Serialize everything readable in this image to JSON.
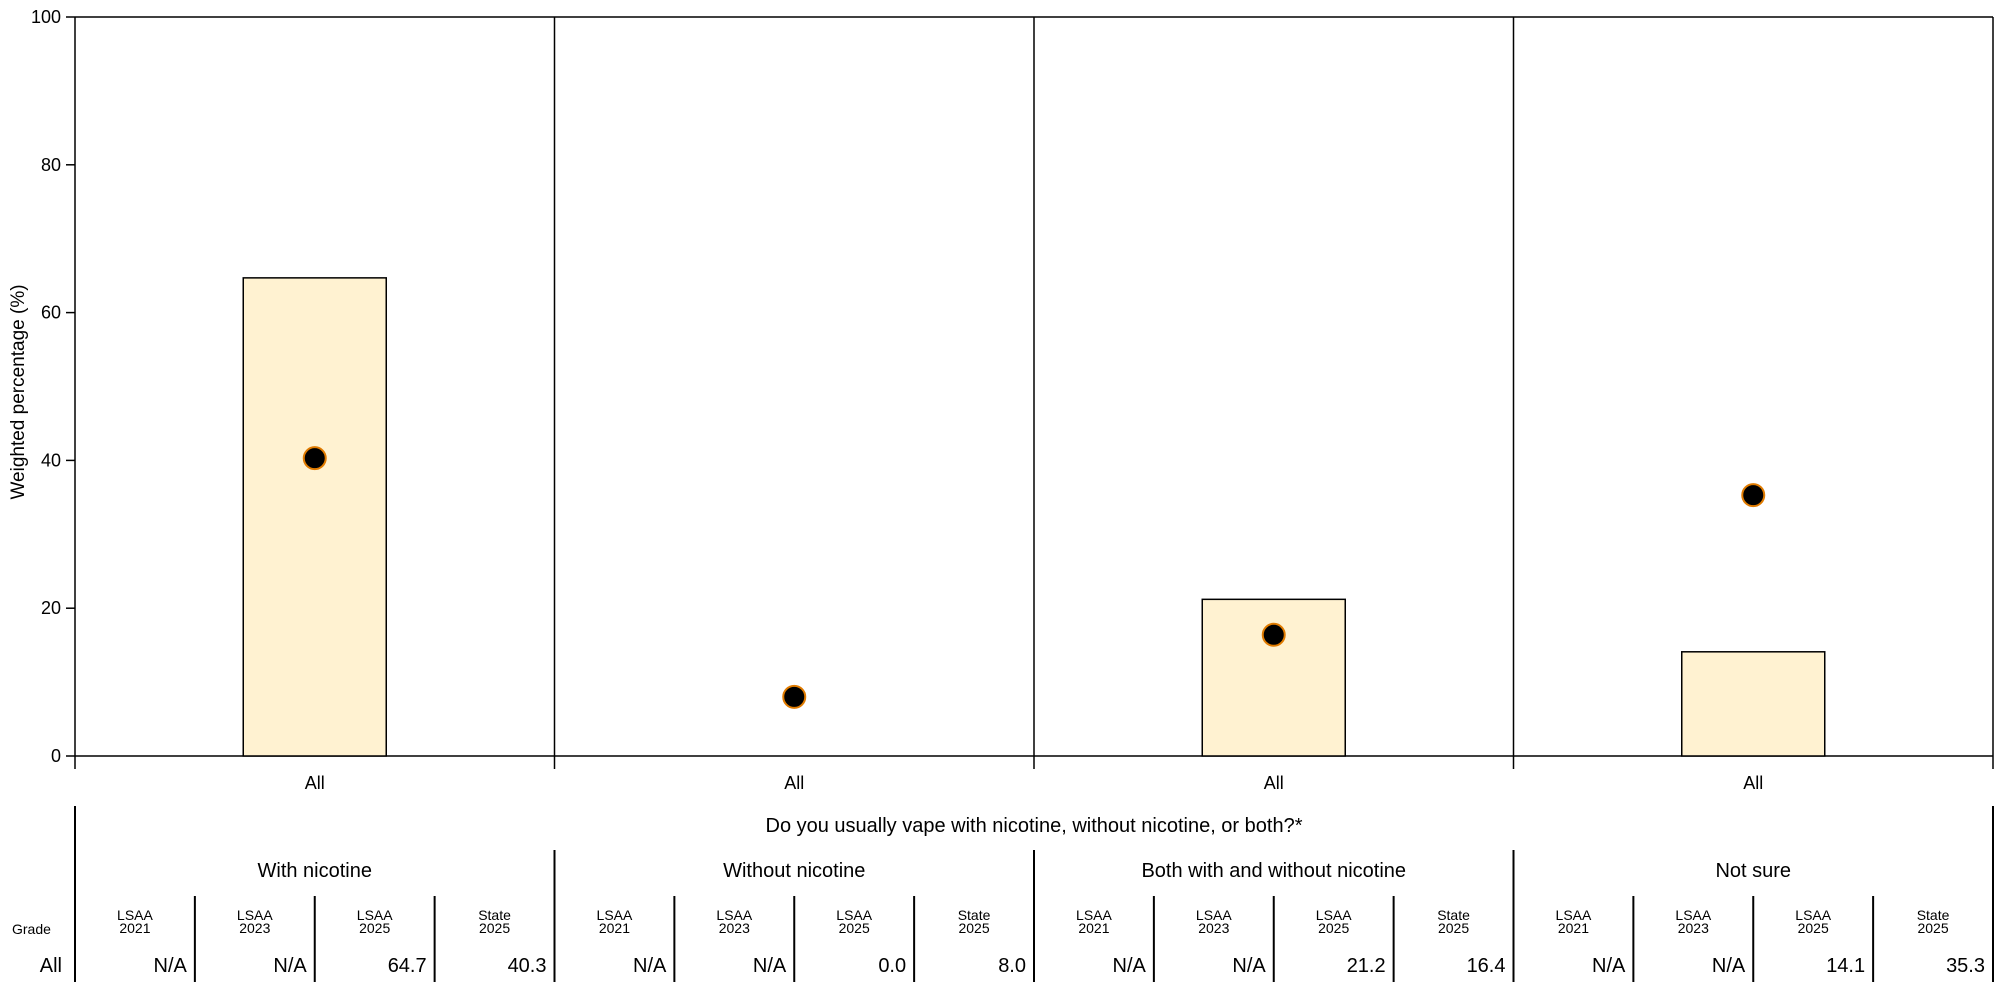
{
  "chart_data": {
    "type": "bar",
    "ylabel": "Weighted percentage (%)",
    "ylim": [
      0,
      100
    ],
    "yticks": [
      0,
      20,
      40,
      60,
      80,
      100
    ],
    "question": "Do you usually vape with nicotine, without nicotine, or both?*",
    "grade_label": "Grade",
    "grade_row": "All",
    "column_headers": [
      [
        "LSAA",
        "2021"
      ],
      [
        "LSAA",
        "2023"
      ],
      [
        "LSAA",
        "2025"
      ],
      [
        "State",
        "2025"
      ]
    ],
    "groups": [
      {
        "name": "With nicotine",
        "category": "All",
        "bar_value": 64.7,
        "state_value": 40.3,
        "table": [
          "N/A",
          "N/A",
          "64.7",
          "40.3"
        ]
      },
      {
        "name": "Without nicotine",
        "category": "All",
        "bar_value": 0.0,
        "state_value": 8.0,
        "table": [
          "N/A",
          "N/A",
          "0.0",
          "8.0"
        ]
      },
      {
        "name": "Both with and without nicotine",
        "category": "All",
        "bar_value": 21.2,
        "state_value": 16.4,
        "table": [
          "N/A",
          "N/A",
          "21.2",
          "16.4"
        ]
      },
      {
        "name": "Not sure",
        "category": "All",
        "bar_value": 14.1,
        "state_value": 35.3,
        "table": [
          "N/A",
          "N/A",
          "14.1",
          "35.3"
        ]
      }
    ],
    "colors": {
      "bar_fill": "#fff2d1",
      "bar_stroke": "#000000",
      "marker_fill": "#000000",
      "marker_stroke": "#e07b00"
    }
  }
}
